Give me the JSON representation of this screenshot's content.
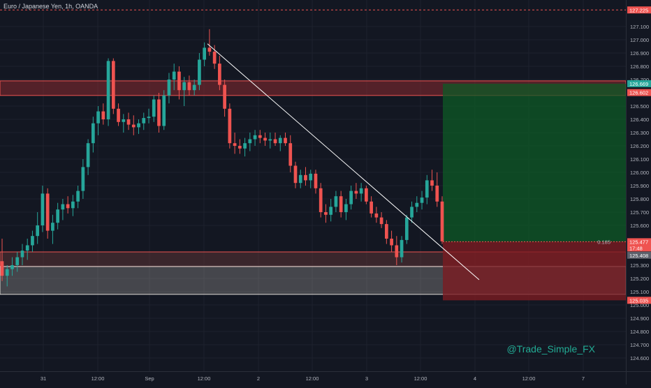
{
  "legend": {
    "symbol_text": "Euro / Japanese Yen, 1h, OANDA"
  },
  "watermark": "@Trade_Simple_FX",
  "colors": {
    "background": "#131722",
    "up": "#26a69a",
    "down": "#ef5350",
    "grid": "#1e222d",
    "resistance_zone": "#8b2a2f",
    "support_zone": "#c9c3b9",
    "profit_zone": "#0d5a25",
    "loss_zone": "#7a1b22",
    "trendline": "#ffffff"
  },
  "chart_data": {
    "type": "candlestick",
    "y_min": 124.5,
    "y_max": 127.3,
    "y_ticks": [
      "127.100",
      "127.000",
      "126.900",
      "126.800",
      "126.700",
      "126.500",
      "126.400",
      "126.300",
      "126.200",
      "126.100",
      "126.000",
      "125.900",
      "125.800",
      "125.700",
      "125.600",
      "125.300",
      "125.200",
      "125.100",
      "125.000",
      "124.900",
      "124.800",
      "124.700",
      "124.600"
    ],
    "x_labels": [
      "31",
      "12:00",
      "Sep",
      "12:00",
      "2",
      "12:00",
      "3",
      "12:00",
      "4",
      "12:00",
      "7"
    ],
    "price_badges": [
      {
        "text": "127.225",
        "color": "#ef5350"
      },
      {
        "text": "126.669",
        "color": "#26a69a"
      },
      {
        "text": "126.602",
        "color": "#ef5350"
      },
      {
        "text": "125.477",
        "color": "#ef5350"
      },
      {
        "text": "17:48",
        "color": "#ef5350"
      },
      {
        "text": "125.408",
        "color": "#5d606b"
      },
      {
        "text": "125.035",
        "color": "#ef5350"
      }
    ],
    "position_label": "0.185",
    "zones": {
      "resistance": [
        126.58,
        126.69
      ],
      "support": [
        125.4,
        125.29,
        125.08
      ],
      "target": 126.669,
      "entry": 125.477,
      "stop": 125.035
    },
    "trendline": {
      "from_price": 126.97,
      "to_price": 125.19
    },
    "candles": [
      [
        125.33,
        125.5,
        125.18,
        125.22
      ],
      [
        125.22,
        125.3,
        125.14,
        125.27
      ],
      [
        125.27,
        125.36,
        125.22,
        125.3
      ],
      [
        125.3,
        125.4,
        125.25,
        125.36
      ],
      [
        125.36,
        125.46,
        125.3,
        125.41
      ],
      [
        125.41,
        125.5,
        125.34,
        125.45
      ],
      [
        125.45,
        125.56,
        125.4,
        125.52
      ],
      [
        125.52,
        125.7,
        125.46,
        125.6
      ],
      [
        125.6,
        125.9,
        125.55,
        125.84
      ],
      [
        125.84,
        125.88,
        125.5,
        125.56
      ],
      [
        125.56,
        125.68,
        125.46,
        125.62
      ],
      [
        125.62,
        125.77,
        125.57,
        125.72
      ],
      [
        125.72,
        125.8,
        125.64,
        125.76
      ],
      [
        125.76,
        125.82,
        125.69,
        125.73
      ],
      [
        125.73,
        125.83,
        125.67,
        125.78
      ],
      [
        125.78,
        125.9,
        125.73,
        125.86
      ],
      [
        125.86,
        126.1,
        125.8,
        126.04
      ],
      [
        126.04,
        126.25,
        125.98,
        126.22
      ],
      [
        126.22,
        126.42,
        126.15,
        126.37
      ],
      [
        126.37,
        126.5,
        126.28,
        126.46
      ],
      [
        126.46,
        126.52,
        126.36,
        126.4
      ],
      [
        126.4,
        126.86,
        126.35,
        126.84
      ],
      [
        126.84,
        126.86,
        126.44,
        126.48
      ],
      [
        126.48,
        126.52,
        126.35,
        126.38
      ],
      [
        126.38,
        126.44,
        126.3,
        126.4
      ],
      [
        126.4,
        126.45,
        126.32,
        126.36
      ],
      [
        126.36,
        126.43,
        126.28,
        126.34
      ],
      [
        126.34,
        126.4,
        126.29,
        126.37
      ],
      [
        126.37,
        126.45,
        126.32,
        126.41
      ],
      [
        126.41,
        126.48,
        126.37,
        126.42
      ],
      [
        126.42,
        126.58,
        126.38,
        126.55
      ],
      [
        126.55,
        126.6,
        126.3,
        126.35
      ],
      [
        126.35,
        126.62,
        126.32,
        126.58
      ],
      [
        126.58,
        126.75,
        126.52,
        126.7
      ],
      [
        126.7,
        126.82,
        126.62,
        126.76
      ],
      [
        126.76,
        126.8,
        126.55,
        126.62
      ],
      [
        126.62,
        126.72,
        126.5,
        126.68
      ],
      [
        126.68,
        126.73,
        126.58,
        126.62
      ],
      [
        126.62,
        126.7,
        126.58,
        126.66
      ],
      [
        126.66,
        126.9,
        126.62,
        126.85
      ],
      [
        126.85,
        126.98,
        126.8,
        126.94
      ],
      [
        126.94,
        127.08,
        126.88,
        126.91
      ],
      [
        126.91,
        126.96,
        126.78,
        126.82
      ],
      [
        126.82,
        126.88,
        126.62,
        126.66
      ],
      [
        126.66,
        126.7,
        126.42,
        126.48
      ],
      [
        126.48,
        126.52,
        126.18,
        126.22
      ],
      [
        126.22,
        126.3,
        126.14,
        126.2
      ],
      [
        126.2,
        126.25,
        126.14,
        126.18
      ],
      [
        126.18,
        126.26,
        126.12,
        126.22
      ],
      [
        126.22,
        126.3,
        126.16,
        126.25
      ],
      [
        126.25,
        126.32,
        126.2,
        126.28
      ],
      [
        126.28,
        126.32,
        126.22,
        126.26
      ],
      [
        126.26,
        126.3,
        126.2,
        126.24
      ],
      [
        126.24,
        126.3,
        126.18,
        126.25
      ],
      [
        126.25,
        126.3,
        126.2,
        126.22
      ],
      [
        126.22,
        126.28,
        126.16,
        126.26
      ],
      [
        126.26,
        126.3,
        126.2,
        126.22
      ],
      [
        126.22,
        126.28,
        126.0,
        126.05
      ],
      [
        126.05,
        126.08,
        125.88,
        125.92
      ],
      [
        125.92,
        126.02,
        125.88,
        125.98
      ],
      [
        125.98,
        126.04,
        125.9,
        125.94
      ],
      [
        125.94,
        126.02,
        125.88,
        125.99
      ],
      [
        125.99,
        126.02,
        125.84,
        125.88
      ],
      [
        125.88,
        125.92,
        125.66,
        125.7
      ],
      [
        125.7,
        125.76,
        125.62,
        125.68
      ],
      [
        125.68,
        125.8,
        125.63,
        125.74
      ],
      [
        125.74,
        125.86,
        125.7,
        125.82
      ],
      [
        125.82,
        125.86,
        125.66,
        125.7
      ],
      [
        125.7,
        125.8,
        125.64,
        125.76
      ],
      [
        125.76,
        125.9,
        125.72,
        125.86
      ],
      [
        125.86,
        125.92,
        125.8,
        125.84
      ],
      [
        125.84,
        125.92,
        125.78,
        125.88
      ],
      [
        125.88,
        125.9,
        125.76,
        125.78
      ],
      [
        125.78,
        125.82,
        125.66,
        125.69
      ],
      [
        125.69,
        125.74,
        125.62,
        125.66
      ],
      [
        125.66,
        125.7,
        125.58,
        125.61
      ],
      [
        125.61,
        125.64,
        125.46,
        125.5
      ],
      [
        125.5,
        125.56,
        125.4,
        125.45
      ],
      [
        125.45,
        125.52,
        125.3,
        125.36
      ],
      [
        125.36,
        125.52,
        125.32,
        125.49
      ],
      [
        125.49,
        125.68,
        125.46,
        125.66
      ],
      [
        125.66,
        125.78,
        125.62,
        125.74
      ],
      [
        125.74,
        125.82,
        125.7,
        125.77
      ],
      [
        125.77,
        125.86,
        125.72,
        125.81
      ],
      [
        125.81,
        125.98,
        125.76,
        125.94
      ],
      [
        125.94,
        126.02,
        125.86,
        125.9
      ],
      [
        125.9,
        126.0,
        125.74,
        125.78
      ],
      [
        125.78,
        125.82,
        125.46,
        125.48
      ]
    ]
  }
}
